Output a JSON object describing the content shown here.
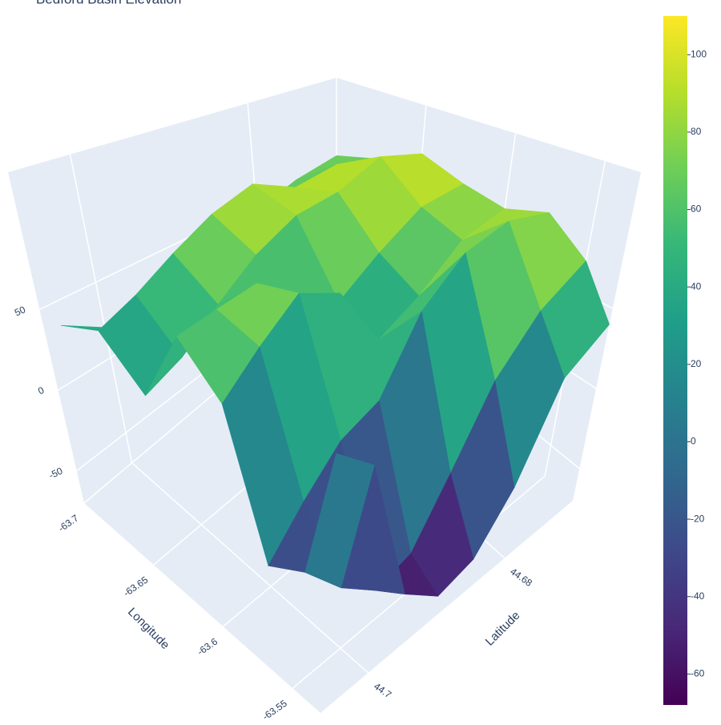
{
  "chart_data": {
    "type": "surface",
    "title": "Bedford Basin Elevation",
    "xaxis_title": "Longitude",
    "yaxis_title": "Latitude",
    "x": [
      -63.7,
      -63.675,
      -63.65,
      -63.625,
      -63.6,
      -63.575,
      -63.55,
      -63.53
    ],
    "y": [
      44.67,
      44.675,
      44.68,
      44.685,
      44.69,
      44.695,
      44.7,
      44.705
    ],
    "z": [
      [
        60,
        75,
        95,
        85,
        80,
        90,
        70,
        40
      ],
      [
        55,
        85,
        105,
        80,
        70,
        95,
        50,
        20
      ],
      [
        45,
        80,
        90,
        60,
        45,
        85,
        20,
        -30
      ],
      [
        50,
        95,
        85,
        40,
        30,
        60,
        -20,
        -55
      ],
      [
        40,
        85,
        70,
        35,
        70,
        20,
        -50,
        -60
      ],
      [
        30,
        70,
        50,
        75,
        80,
        10,
        -55,
        -45
      ],
      [
        20,
        55,
        30,
        70,
        60,
        -10,
        -40,
        30
      ],
      [
        35,
        45,
        20,
        65,
        40,
        -30,
        -20,
        45
      ]
    ],
    "xlim": [
      -63.7,
      -63.53
    ],
    "xticks": [
      -63.7,
      -63.65,
      -63.6,
      -63.55
    ],
    "ylim": [
      44.67,
      44.707
    ],
    "yticks": [
      44.68,
      44.7
    ],
    "zlim": [
      -70,
      135
    ],
    "zticks": [
      -50,
      0,
      50
    ],
    "colorscale": [
      "#440154",
      "#482878",
      "#3e4989",
      "#31688e",
      "#26828e",
      "#1f9e89",
      "#35b779",
      "#6ece58",
      "#b5de2b",
      "#fde725"
    ],
    "cmin": -68,
    "cmax": 110,
    "colorbar_ticks": [
      -60,
      -40,
      -20,
      0,
      20,
      40,
      60,
      80,
      100
    ]
  }
}
